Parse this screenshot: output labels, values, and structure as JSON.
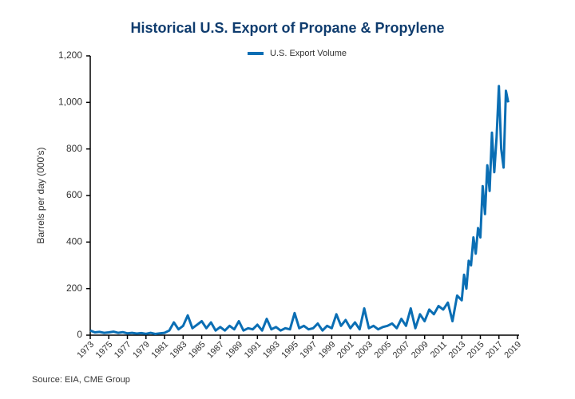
{
  "chart_data": {
    "type": "line",
    "title": "Historical U.S. Export of Propane & Propylene",
    "y_label": "Barrels per day (000's)",
    "source": "Source: EIA, CME Group",
    "x": [
      1973,
      1973.5,
      1974,
      1974.5,
      1975,
      1975.5,
      1976,
      1976.5,
      1977,
      1977.5,
      1978,
      1978.5,
      1979,
      1979.5,
      1980,
      1980.5,
      1981,
      1981.5,
      1982,
      1982.5,
      1983,
      1983.5,
      1984,
      1984.5,
      1985,
      1985.5,
      1986,
      1986.5,
      1987,
      1987.5,
      1988,
      1988.5,
      1989,
      1989.5,
      1990,
      1990.5,
      1991,
      1991.5,
      1992,
      1992.5,
      1993,
      1993.5,
      1994,
      1994.5,
      1995,
      1995.5,
      1996,
      1996.5,
      1997,
      1997.5,
      1998,
      1998.5,
      1999,
      1999.5,
      2000,
      2000.5,
      2001,
      2001.5,
      2002,
      2002.5,
      2003,
      2003.5,
      2004,
      2004.5,
      2005,
      2005.5,
      2006,
      2006.5,
      2007,
      2007.5,
      2008,
      2008.5,
      2009,
      2009.5,
      2010,
      2010.5,
      2011,
      2011.5,
      2012,
      2012.5,
      2013,
      2013.25,
      2013.5,
      2013.75,
      2014,
      2014.25,
      2014.5,
      2014.75,
      2015,
      2015.25,
      2015.5,
      2015.75,
      2016,
      2016.25,
      2016.5,
      2016.75,
      2017,
      2017.25,
      2017.5,
      2017.75,
      2018
    ],
    "series": [
      {
        "name": "U.S. Export Volume",
        "color": "#0a6eb4",
        "values": [
          20,
          12,
          14,
          10,
          12,
          15,
          10,
          13,
          8,
          10,
          7,
          9,
          6,
          10,
          5,
          8,
          10,
          20,
          55,
          25,
          40,
          85,
          30,
          45,
          60,
          30,
          55,
          20,
          35,
          20,
          40,
          25,
          60,
          20,
          30,
          25,
          45,
          20,
          70,
          25,
          35,
          20,
          30,
          25,
          95,
          30,
          40,
          25,
          30,
          50,
          20,
          40,
          30,
          90,
          40,
          65,
          30,
          55,
          25,
          115,
          30,
          40,
          25,
          35,
          40,
          50,
          30,
          70,
          40,
          115,
          30,
          90,
          60,
          110,
          90,
          125,
          110,
          140,
          60,
          170,
          150,
          260,
          200,
          320,
          300,
          420,
          350,
          460,
          420,
          640,
          520,
          730,
          620,
          870,
          700,
          850,
          1070,
          800,
          720,
          1050,
          1000
        ]
      }
    ],
    "xlim": [
      1973,
      2019
    ],
    "xticks": [
      1973,
      1975,
      1977,
      1979,
      1981,
      1983,
      1985,
      1987,
      1989,
      1991,
      1993,
      1995,
      1997,
      1999,
      2001,
      2003,
      2005,
      2007,
      2009,
      2011,
      2013,
      2015,
      2017,
      2019
    ],
    "ylim": [
      0,
      1200
    ],
    "yticks": [
      0,
      200,
      400,
      600,
      800,
      {
        "value": 1000,
        "label": "1,000"
      },
      {
        "value": 1200,
        "label": "1,200"
      }
    ],
    "grid": false
  }
}
